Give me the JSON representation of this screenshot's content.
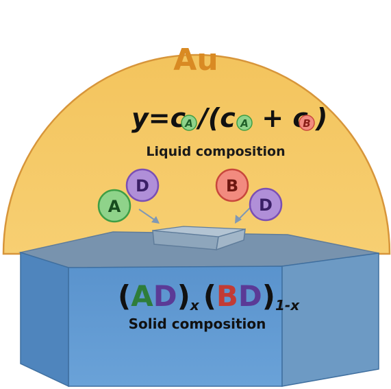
{
  "droplet": {
    "element": "Au",
    "formula": {
      "lhs": "y=",
      "c": "c",
      "sub_a": "A",
      "sub_b": "B",
      "slash": "/(",
      "plus": " + ",
      "close": ")"
    },
    "caption": "Liquid composition"
  },
  "atoms": {
    "a1": "A",
    "d1": "D",
    "b1": "B",
    "d2": "D"
  },
  "crystal": {
    "formula": {
      "open1": "(",
      "a": "A",
      "d1": "D",
      "close1": ")",
      "sub_x": "x",
      "open2": "(",
      "b": "B",
      "d2": "D",
      "close2": ")",
      "sub_1x": "1-x"
    },
    "caption": "Solid composition"
  },
  "colors": {
    "droplet_fill": "#f5c862",
    "droplet_edge": "#d7953a",
    "au_text": "#d98a23",
    "atom_a": "#8fd38a",
    "atom_a_edge": "#3e9e45",
    "atom_b": "#f28b7f",
    "atom_b_edge": "#c8473c",
    "atom_d": "#b08fd8",
    "atom_d_edge": "#7a4fb4",
    "crystal_front": "#5f97cf",
    "crystal_top": "#7a95b0",
    "text_a": "#2e7d3a",
    "text_b": "#c23b34",
    "text_d": "#5b3a96"
  }
}
